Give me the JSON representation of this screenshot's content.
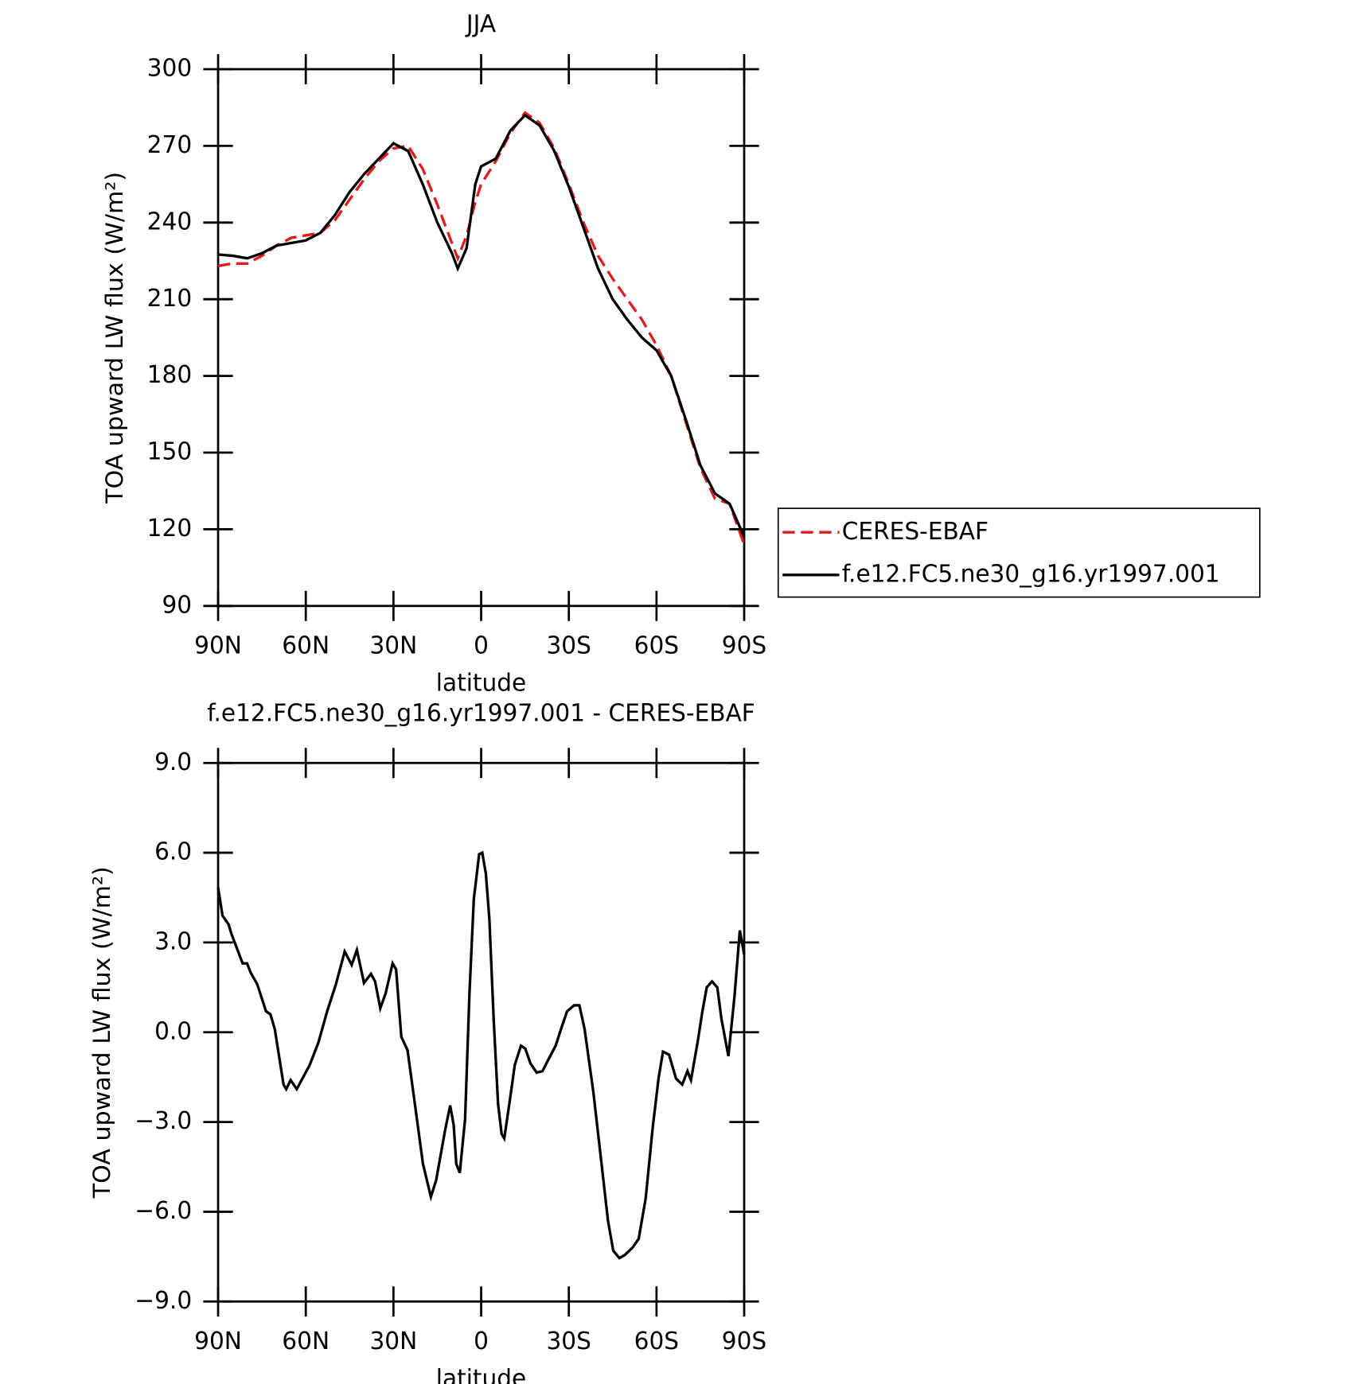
{
  "chart_data": [
    {
      "type": "line",
      "title": "JJA",
      "xlabel": "latitude",
      "ylabel": "TOA upward LW flux (W/m²)",
      "x": [
        90,
        85,
        80,
        75,
        70,
        65,
        60,
        55,
        50,
        45,
        40,
        35,
        30,
        25,
        20,
        15,
        10,
        8,
        5,
        2,
        0,
        -5,
        -10,
        -15,
        -20,
        -25,
        -30,
        -35,
        -40,
        -45,
        -50,
        -55,
        -60,
        -65,
        -70,
        -75,
        -80,
        -85,
        -90
      ],
      "series": [
        {
          "name": "CERES-EBAF",
          "color": "#e41a1c",
          "line_style": "dashed",
          "values": [
            223,
            224,
            224,
            227,
            231,
            234,
            235,
            236,
            241,
            249,
            257,
            264,
            269,
            270,
            261,
            247,
            232,
            226,
            235,
            248,
            255,
            264,
            275,
            283,
            279,
            269,
            255,
            240,
            227,
            218,
            210,
            202,
            192,
            180,
            162,
            144,
            132,
            130,
            114
          ]
        },
        {
          "name": "f.e12.FC5.ne30_g16.yr1997.001",
          "color": "#000000",
          "line_style": "solid",
          "values": [
            227.5,
            227,
            226,
            228,
            231,
            232,
            233,
            236,
            243,
            252,
            259,
            265,
            271,
            268,
            255,
            240,
            228,
            222,
            230,
            255,
            262,
            265,
            276,
            282,
            278,
            268,
            254,
            238,
            222,
            210,
            202,
            195,
            190,
            180,
            163,
            145,
            134,
            130,
            117
          ]
        }
      ],
      "xlim": [
        90,
        -90
      ],
      "xticks": [
        {
          "value": 90,
          "label": "90N"
        },
        {
          "value": 60,
          "label": "60N"
        },
        {
          "value": 30,
          "label": "30N"
        },
        0,
        {
          "value": -30,
          "label": "30S"
        },
        {
          "value": -60,
          "label": "60S"
        },
        {
          "value": -90,
          "label": "90S"
        }
      ],
      "ylim": [
        90,
        300
      ],
      "yticks": [
        90,
        120,
        150,
        180,
        210,
        240,
        270,
        300
      ],
      "legend": "right"
    },
    {
      "type": "line",
      "title": "f.e12.FC5.ne30_g16.yr1997.001 - CERES-EBAF",
      "xlabel": "latitude",
      "ylabel": "TOA upward LW flux (W/m²)",
      "x": [
        90,
        88.5,
        86.4,
        85.5,
        81.6,
        80.1,
        78.9,
        76.6,
        73.6,
        72.1,
        70.6,
        67.6,
        66.7,
        65.2,
        63.1,
        58.7,
        55.7,
        52.7,
        49.7,
        46.7,
        44.3,
        42.5,
        40.1,
        37.7,
        36.3,
        34.5,
        32.7,
        30.3,
        29.1,
        27.3,
        25.2,
        22.8,
        19.9,
        17.2,
        15.4,
        12.4,
        10.6,
        9.4,
        8.5,
        7.3,
        5.5,
        4.0,
        2.5,
        0.7,
        -0.4,
        -1.6,
        -2.8,
        -4.3,
        -5.8,
        -7.0,
        -7.9,
        -10.0,
        -11.5,
        -13.6,
        -15.1,
        -16.9,
        -19.0,
        -21.0,
        -22.8,
        -25.5,
        -27.3,
        -29.4,
        -31.8,
        -33.6,
        -35.4,
        -38.4,
        -41.3,
        -43.4,
        -45.2,
        -47.3,
        -49.1,
        -51.8,
        -53.9,
        -56.3,
        -58.7,
        -60.7,
        -62.2,
        -64.3,
        -66.7,
        -68.8,
        -70.6,
        -71.8,
        -74.2,
        -75.7,
        -77.2,
        -79.0,
        -80.8,
        -82.2,
        -84.6,
        -86.7,
        -88.5,
        -90
      ],
      "series": [
        {
          "name": "f.e12.FC5.ne30_g16.yr1997.001 - CERES-EBAF",
          "color": "#000000",
          "line_style": "solid",
          "values": [
            4.84,
            3.9,
            3.6,
            3.3,
            2.3,
            2.3,
            2.0,
            1.6,
            0.7,
            0.6,
            0.1,
            -1.75,
            -1.9,
            -1.6,
            -1.9,
            -1.1,
            -0.35,
            0.7,
            1.6,
            2.7,
            2.25,
            2.75,
            1.65,
            1.95,
            1.7,
            0.8,
            1.3,
            2.3,
            2.1,
            -0.15,
            -0.6,
            -2.3,
            -4.4,
            -5.5,
            -4.95,
            -3.3,
            -2.45,
            -3.1,
            -4.4,
            -4.7,
            -2.9,
            1.3,
            4.45,
            5.95,
            6.0,
            5.3,
            3.8,
            0.4,
            -2.4,
            -3.4,
            -3.55,
            -2.15,
            -1.1,
            -0.45,
            -0.55,
            -1.05,
            -1.35,
            -1.3,
            -0.95,
            -0.45,
            0.1,
            0.7,
            0.9,
            0.9,
            0.1,
            -2.0,
            -4.5,
            -6.3,
            -7.3,
            -7.55,
            -7.45,
            -7.2,
            -6.9,
            -5.55,
            -3.2,
            -1.55,
            -0.65,
            -0.75,
            -1.55,
            -1.75,
            -1.3,
            -1.6,
            -0.25,
            0.7,
            1.5,
            1.7,
            1.5,
            0.45,
            -0.8,
            1.2,
            3.4,
            2.6
          ]
        }
      ],
      "xlim": [
        90,
        -90
      ],
      "xticks": [
        {
          "value": 90,
          "label": "90N"
        },
        {
          "value": 60,
          "label": "60N"
        },
        {
          "value": 30,
          "label": "30N"
        },
        0,
        {
          "value": -30,
          "label": "30S"
        },
        {
          "value": -60,
          "label": "60S"
        },
        {
          "value": -90,
          "label": "90S"
        }
      ],
      "ylim": [
        -9,
        9
      ],
      "yticks": [
        {
          "value": -9,
          "label": "−9.0"
        },
        {
          "value": -6,
          "label": "−6.0"
        },
        {
          "value": -3,
          "label": "−3.0"
        },
        {
          "value": 0,
          "label": "0.0"
        },
        {
          "value": 3,
          "label": "3.0"
        },
        {
          "value": 6,
          "label": "6.0"
        },
        {
          "value": 9,
          "label": "9.0"
        }
      ]
    }
  ]
}
